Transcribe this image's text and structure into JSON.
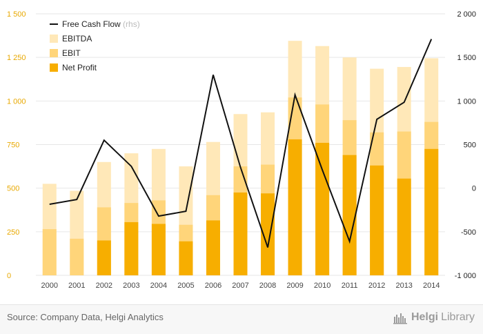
{
  "chart_data": {
    "type": "bar",
    "categories": [
      "2000",
      "2001",
      "2002",
      "2003",
      "2004",
      "2005",
      "2006",
      "2007",
      "2008",
      "2009",
      "2010",
      "2011",
      "2012",
      "2013",
      "2014"
    ],
    "series": [
      {
        "name": "EBITDA",
        "type": "bar",
        "axis": "left",
        "color": "#ffe8b8",
        "values": [
          525,
          485,
          650,
          700,
          725,
          625,
          765,
          925,
          935,
          1345,
          1315,
          1250,
          1185,
          1195,
          1245
        ]
      },
      {
        "name": "EBIT",
        "type": "bar",
        "axis": "left",
        "color": "#ffd57a",
        "values": [
          265,
          210,
          390,
          415,
          430,
          290,
          460,
          625,
          635,
          1020,
          980,
          890,
          820,
          825,
          880
        ]
      },
      {
        "name": "Net Profit",
        "type": "bar",
        "axis": "left",
        "color": "#f7ae00",
        "values": [
          null,
          null,
          200,
          305,
          295,
          195,
          315,
          475,
          470,
          780,
          760,
          690,
          630,
          555,
          725
        ]
      },
      {
        "name": "Free Cash Flow",
        "type": "line",
        "axis": "right",
        "color": "#111111",
        "values": [
          -185,
          -130,
          550,
          250,
          -320,
          -265,
          1300,
          240,
          -680,
          1070,
          210,
          -610,
          790,
          985,
          1710
        ]
      }
    ],
    "y_left": {
      "ylim": [
        0,
        1500
      ],
      "ticks": [
        0,
        250,
        500,
        750,
        1000,
        1250,
        1500
      ],
      "tick_labels": [
        "0",
        "250",
        "500",
        "750",
        "1 000",
        "1 250",
        "1 500"
      ]
    },
    "y_right": {
      "ylim": [
        -1000,
        2000
      ],
      "ticks": [
        -1000,
        -500,
        0,
        500,
        1000,
        1500,
        2000
      ],
      "tick_labels": [
        "-1 000",
        "-500",
        "0",
        "500",
        "1 000",
        "1 500",
        "2 000"
      ]
    },
    "grid": true,
    "legend": {
      "placement": "top-left",
      "items": [
        {
          "label": "Free Cash Flow",
          "suffix": "(rhs)",
          "kind": "line",
          "color": "#111111"
        },
        {
          "label": "EBITDA",
          "kind": "box",
          "color": "#ffe8b8"
        },
        {
          "label": "EBIT",
          "kind": "box",
          "color": "#ffd57a"
        },
        {
          "label": "Net Profit",
          "kind": "box",
          "color": "#f7ae00"
        }
      ]
    }
  },
  "footer": {
    "source": "Source: Company Data, Helgi Analytics",
    "brand_part1": "Helgi",
    "brand_part2": "Library"
  }
}
